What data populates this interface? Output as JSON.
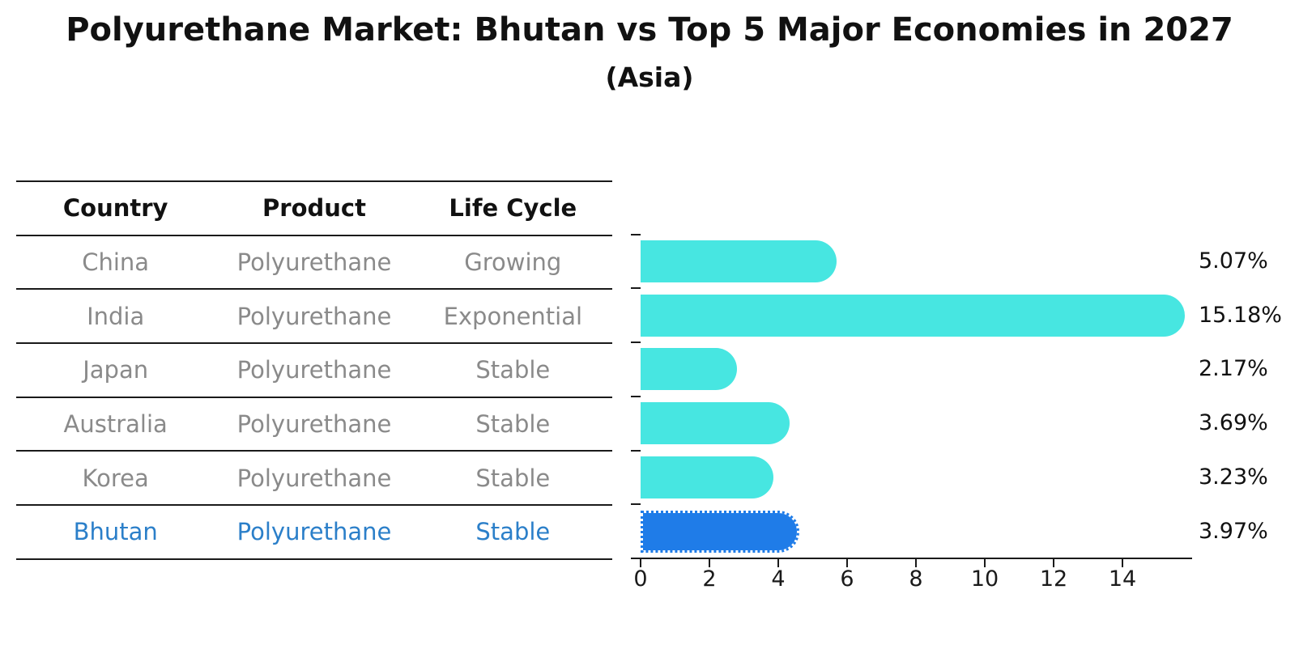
{
  "title": "Polyurethane Market: Bhutan vs Top 5 Major Economies in 2027",
  "subtitle": "(Asia)",
  "table": {
    "headers": [
      "Country",
      "Product",
      "Life Cycle"
    ],
    "rows": [
      {
        "country": "China",
        "product": "Polyurethane",
        "life_cycle": "Growing"
      },
      {
        "country": "India",
        "product": "Polyurethane",
        "life_cycle": "Exponential"
      },
      {
        "country": "Japan",
        "product": "Polyurethane",
        "life_cycle": "Stable"
      },
      {
        "country": "Australia",
        "product": "Polyurethane",
        "life_cycle": "Stable"
      },
      {
        "country": "Korea",
        "product": "Polyurethane",
        "life_cycle": "Stable"
      },
      {
        "country": "Bhutan",
        "product": "Polyurethane",
        "life_cycle": "Stable"
      }
    ],
    "highlight_country": "Bhutan"
  },
  "chart_data": {
    "type": "bar",
    "orientation": "horizontal",
    "title": "Polyurethane Market: Bhutan vs Top 5 Major Economies in 2027",
    "subtitle": "(Asia)",
    "categories": [
      "China",
      "India",
      "Japan",
      "Australia",
      "Korea",
      "Bhutan"
    ],
    "values": [
      5.07,
      15.18,
      2.17,
      3.69,
      3.23,
      3.97
    ],
    "value_labels": [
      "5.07%",
      "15.18%",
      "2.17%",
      "3.69%",
      "3.23%",
      "3.97%"
    ],
    "xlim": [
      0,
      16
    ],
    "x_ticks": [
      0,
      2,
      4,
      6,
      8,
      10,
      12,
      14
    ],
    "grid": false,
    "legend": false,
    "highlight_category": "Bhutan",
    "colors": {
      "bar": "#47e6e1",
      "highlight_bar": "#1f7ce8",
      "highlight_text": "#2b7fc9",
      "table_text": "#8a8a8a",
      "axis": "#1a1a1a"
    }
  }
}
